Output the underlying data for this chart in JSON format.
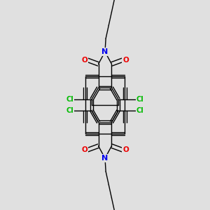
{
  "bg_color": "#e0e0e0",
  "atom_colors": {
    "C": "#000000",
    "N": "#0000ee",
    "O": "#ee0000",
    "Cl": "#00bb00"
  },
  "bond_color": "#000000",
  "bond_width": 1.0,
  "figsize": [
    3.0,
    3.0
  ],
  "dpi": 100,
  "xlim": [
    0,
    10
  ],
  "ylim": [
    0,
    13
  ]
}
